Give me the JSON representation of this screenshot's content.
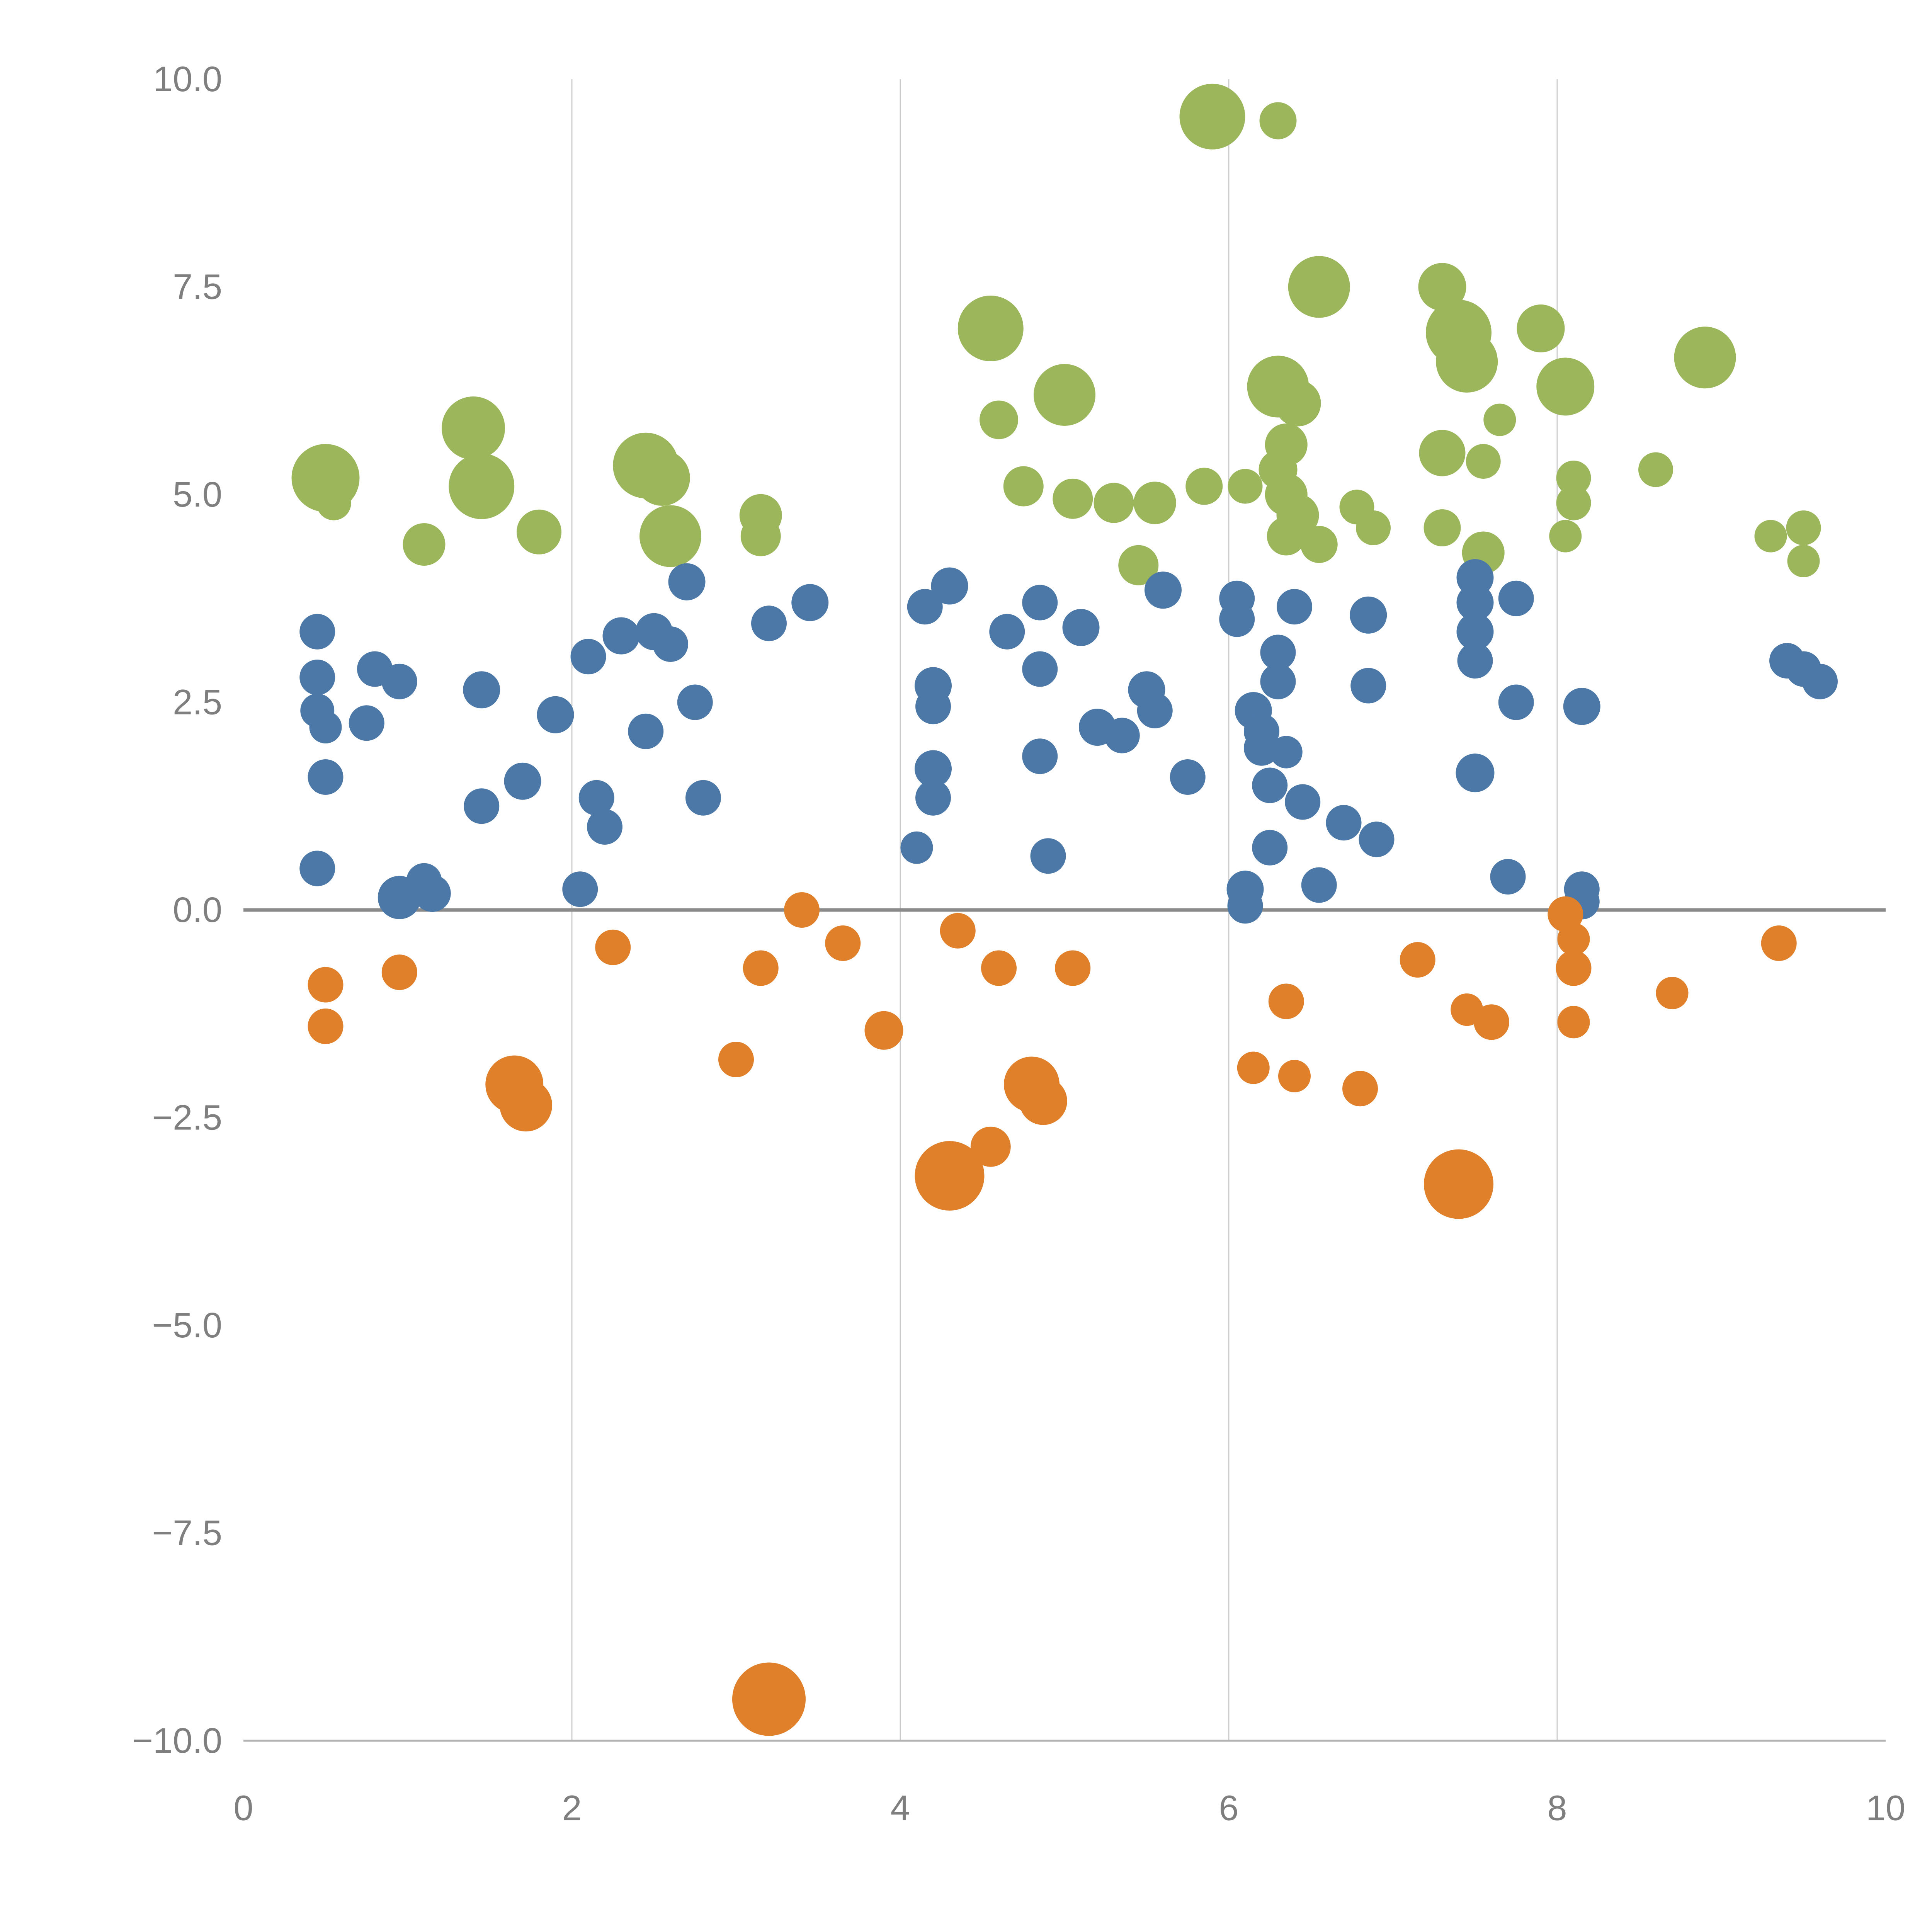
{
  "chart_data": {
    "type": "scatter",
    "title": "",
    "xlabel": "",
    "ylabel": "",
    "xlim": [
      0,
      10
    ],
    "ylim": [
      -10,
      10
    ],
    "grid": {
      "vertical_at": [
        2,
        4,
        6,
        8
      ],
      "horizontal": false
    },
    "zero_line": {
      "y": 0,
      "color": "#8a8a8a"
    },
    "axis_color": "#b3b3b3",
    "grid_color": "#cccccc",
    "tick_label_color": "#7f7f7f",
    "x_ticks": {
      "values": [
        0,
        2,
        4,
        6,
        8,
        10
      ],
      "labels": [
        "0",
        "2",
        "4",
        "6",
        "8",
        "10"
      ]
    },
    "y_ticks": {
      "values": [
        10,
        7.5,
        5,
        2.5,
        0,
        -2.5,
        -5,
        -7.5,
        -10
      ],
      "labels": [
        "10.0",
        "7.5",
        "5.0",
        "2.5",
        "0.0",
        "−2.5",
        "−5.0",
        "−7.5",
        "−10.0"
      ]
    },
    "legend": "none",
    "series": [
      {
        "name": "green",
        "color": "#9cb75b",
        "points": [
          [
            0.5,
            5.2,
            88
          ],
          [
            0.55,
            4.9,
            45
          ],
          [
            1.1,
            4.4,
            55
          ],
          [
            1.4,
            5.8,
            82
          ],
          [
            1.45,
            5.1,
            85
          ],
          [
            1.8,
            4.55,
            58
          ],
          [
            2.45,
            5.35,
            85
          ],
          [
            2.55,
            5.2,
            72
          ],
          [
            2.6,
            4.5,
            80
          ],
          [
            3.15,
            4.75,
            55
          ],
          [
            3.15,
            4.5,
            52
          ],
          [
            4.55,
            7.0,
            85
          ],
          [
            4.6,
            5.9,
            50
          ],
          [
            4.75,
            5.1,
            52
          ],
          [
            5.0,
            6.2,
            80
          ],
          [
            5.05,
            4.95,
            52
          ],
          [
            5.3,
            4.9,
            52
          ],
          [
            5.55,
            4.9,
            55
          ],
          [
            5.45,
            4.15,
            52
          ],
          [
            5.85,
            5.1,
            48
          ],
          [
            5.9,
            9.55,
            85
          ],
          [
            6.3,
            9.5,
            48
          ],
          [
            6.1,
            5.1,
            45
          ],
          [
            6.3,
            6.3,
            80
          ],
          [
            6.42,
            6.1,
            60
          ],
          [
            6.35,
            5.6,
            55
          ],
          [
            6.3,
            5.3,
            50
          ],
          [
            6.35,
            5.0,
            55
          ],
          [
            6.42,
            4.75,
            55
          ],
          [
            6.35,
            4.5,
            50
          ],
          [
            6.55,
            4.4,
            48
          ],
          [
            6.55,
            7.5,
            80
          ],
          [
            6.78,
            4.85,
            45
          ],
          [
            6.88,
            4.6,
            45
          ],
          [
            7.3,
            7.5,
            62
          ],
          [
            7.4,
            6.95,
            85
          ],
          [
            7.45,
            6.6,
            80
          ],
          [
            7.3,
            5.5,
            60
          ],
          [
            7.55,
            5.4,
            45
          ],
          [
            7.65,
            5.9,
            42
          ],
          [
            7.3,
            4.6,
            48
          ],
          [
            7.55,
            4.3,
            55
          ],
          [
            7.9,
            7.0,
            62
          ],
          [
            8.05,
            6.3,
            75
          ],
          [
            8.1,
            5.2,
            45
          ],
          [
            8.1,
            4.9,
            45
          ],
          [
            8.05,
            4.5,
            42
          ],
          [
            8.6,
            5.3,
            45
          ],
          [
            8.9,
            6.65,
            80
          ],
          [
            9.3,
            4.5,
            42
          ],
          [
            9.5,
            4.6,
            45
          ],
          [
            9.5,
            4.2,
            42
          ]
        ]
      },
      {
        "name": "blue",
        "color": "#4c78a8",
        "points": [
          [
            0.45,
            3.35,
            46
          ],
          [
            0.45,
            2.8,
            46
          ],
          [
            0.45,
            2.4,
            44
          ],
          [
            0.5,
            2.2,
            42
          ],
          [
            0.5,
            1.6,
            46
          ],
          [
            0.45,
            0.5,
            46
          ],
          [
            0.8,
            2.9,
            46
          ],
          [
            0.75,
            2.25,
            46
          ],
          [
            0.95,
            2.75,
            46
          ],
          [
            0.95,
            0.15,
            56
          ],
          [
            1.1,
            0.35,
            46
          ],
          [
            1.15,
            0.2,
            48
          ],
          [
            1.45,
            2.65,
            48
          ],
          [
            1.45,
            1.25,
            46
          ],
          [
            1.7,
            1.55,
            48
          ],
          [
            1.9,
            2.35,
            48
          ],
          [
            2.05,
            0.25,
            46
          ],
          [
            2.1,
            3.05,
            46
          ],
          [
            2.15,
            1.35,
            46
          ],
          [
            2.2,
            1.0,
            46
          ],
          [
            2.3,
            3.3,
            48
          ],
          [
            2.45,
            2.15,
            46
          ],
          [
            2.5,
            3.35,
            48
          ],
          [
            2.6,
            3.2,
            46
          ],
          [
            2.7,
            3.95,
            48
          ],
          [
            2.75,
            2.5,
            46
          ],
          [
            2.8,
            1.35,
            46
          ],
          [
            3.2,
            3.45,
            46
          ],
          [
            3.45,
            3.7,
            48
          ],
          [
            4.1,
            0.75,
            42
          ],
          [
            4.15,
            3.65,
            46
          ],
          [
            4.2,
            2.7,
            48
          ],
          [
            4.2,
            2.45,
            46
          ],
          [
            4.2,
            1.7,
            48
          ],
          [
            4.2,
            1.35,
            46
          ],
          [
            4.3,
            3.9,
            48
          ],
          [
            4.65,
            3.35,
            46
          ],
          [
            4.85,
            3.7,
            46
          ],
          [
            4.85,
            2.9,
            46
          ],
          [
            4.85,
            1.85,
            46
          ],
          [
            4.9,
            0.65,
            46
          ],
          [
            5.1,
            3.4,
            48
          ],
          [
            5.2,
            2.2,
            48
          ],
          [
            5.35,
            2.1,
            46
          ],
          [
            5.5,
            2.65,
            48
          ],
          [
            5.55,
            2.4,
            46
          ],
          [
            5.6,
            3.85,
            48
          ],
          [
            5.75,
            1.6,
            46
          ],
          [
            6.05,
            3.75,
            46
          ],
          [
            6.05,
            3.5,
            46
          ],
          [
            6.1,
            0.25,
            48
          ],
          [
            6.1,
            0.05,
            46
          ],
          [
            6.15,
            2.4,
            48
          ],
          [
            6.2,
            2.15,
            46
          ],
          [
            6.2,
            1.95,
            46
          ],
          [
            6.25,
            1.5,
            46
          ],
          [
            6.25,
            0.75,
            46
          ],
          [
            6.3,
            3.1,
            46
          ],
          [
            6.3,
            2.75,
            46
          ],
          [
            6.35,
            1.9,
            42
          ],
          [
            6.4,
            3.65,
            46
          ],
          [
            6.45,
            1.3,
            46
          ],
          [
            6.55,
            0.3,
            46
          ],
          [
            6.7,
            1.05,
            46
          ],
          [
            6.85,
            2.7,
            46
          ],
          [
            6.9,
            0.85,
            46
          ],
          [
            6.85,
            3.55,
            48
          ],
          [
            7.5,
            4.0,
            48
          ],
          [
            7.5,
            3.7,
            48
          ],
          [
            7.5,
            3.35,
            48
          ],
          [
            7.5,
            3.0,
            46
          ],
          [
            7.5,
            1.65,
            50
          ],
          [
            7.75,
            3.75,
            46
          ],
          [
            7.75,
            2.5,
            46
          ],
          [
            7.7,
            0.4,
            46
          ],
          [
            8.15,
            2.45,
            48
          ],
          [
            8.15,
            0.25,
            46
          ],
          [
            8.15,
            0.1,
            46
          ],
          [
            9.4,
            3.0,
            46
          ],
          [
            9.5,
            2.9,
            46
          ],
          [
            9.6,
            2.75,
            46
          ]
        ]
      },
      {
        "name": "orange",
        "color": "#e0802b",
        "points": [
          [
            0.5,
            -0.9,
            46
          ],
          [
            0.5,
            -1.4,
            46
          ],
          [
            0.95,
            -0.75,
            46
          ],
          [
            1.65,
            -2.1,
            75
          ],
          [
            1.72,
            -2.35,
            68
          ],
          [
            2.25,
            -0.45,
            46
          ],
          [
            3.0,
            -1.8,
            46
          ],
          [
            3.15,
            -0.7,
            46
          ],
          [
            3.4,
            0.0,
            46
          ],
          [
            3.2,
            -9.5,
            95
          ],
          [
            3.65,
            -0.4,
            46
          ],
          [
            3.9,
            -1.45,
            50
          ],
          [
            4.3,
            -3.2,
            90
          ],
          [
            4.35,
            -0.25,
            46
          ],
          [
            4.55,
            -2.85,
            52
          ],
          [
            4.6,
            -0.7,
            46
          ],
          [
            4.8,
            -2.1,
            72
          ],
          [
            4.87,
            -2.3,
            62
          ],
          [
            5.05,
            -0.7,
            46
          ],
          [
            6.15,
            -1.9,
            42
          ],
          [
            6.35,
            -1.1,
            46
          ],
          [
            6.4,
            -2.0,
            42
          ],
          [
            6.8,
            -2.15,
            46
          ],
          [
            7.15,
            -0.6,
            46
          ],
          [
            7.4,
            -3.3,
            90
          ],
          [
            7.45,
            -1.2,
            42
          ],
          [
            7.6,
            -1.35,
            46
          ],
          [
            8.05,
            -0.05,
            46
          ],
          [
            8.1,
            -0.35,
            42
          ],
          [
            8.1,
            -0.7,
            46
          ],
          [
            8.1,
            -1.35,
            42
          ],
          [
            8.7,
            -1.0,
            42
          ],
          [
            9.35,
            -0.4,
            46
          ]
        ]
      }
    ]
  }
}
